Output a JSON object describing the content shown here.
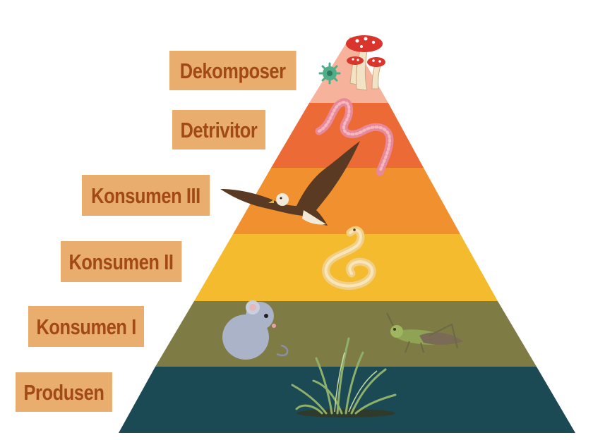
{
  "levels": [
    {
      "label": "Dekomposer",
      "color": "#f6b29b",
      "organism": "mushroom-and-bacteria-icon"
    },
    {
      "label": "Detrivitor",
      "color": "#ec6a36",
      "organism": "earthworm-icon"
    },
    {
      "label": "Konsumen III",
      "color": "#f0902e",
      "organism": "eagle-icon"
    },
    {
      "label": "Konsumen II",
      "color": "#f3bb2d",
      "organism": "snake-icon"
    },
    {
      "label": "Konsumen I",
      "color": "#7f7b45",
      "organism": "mouse-and-grasshopper-icon"
    },
    {
      "label": "Produsen",
      "color": "#1b4a55",
      "organism": "grass-icon"
    }
  ],
  "label_style": {
    "background": "#e9ad6e",
    "text_color": "#a24a17"
  }
}
